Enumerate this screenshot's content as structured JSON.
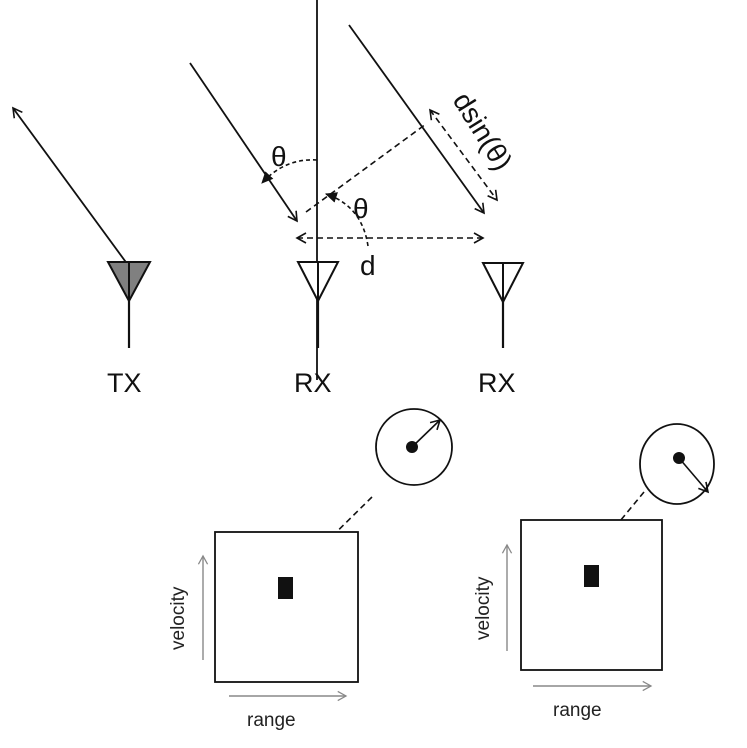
{
  "antennas": {
    "tx_label": "TX",
    "rx1_label": "RX",
    "rx2_label": "RX"
  },
  "geometry_labels": {
    "theta_upper": "θ",
    "theta_lower": "θ",
    "distance": "d",
    "path_difference": "dsin(θ)"
  },
  "heatmaps": [
    {
      "xlabel": "range",
      "ylabel": "velocity"
    },
    {
      "xlabel": "range",
      "ylabel": "velocity"
    }
  ],
  "colors": {
    "line": "#111111",
    "tx_fill": "#808080",
    "axis_arrow": "#888888"
  }
}
